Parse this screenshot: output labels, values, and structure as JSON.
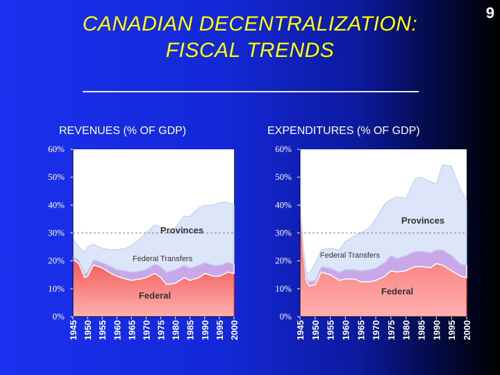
{
  "slide": {
    "title_line1": "CANADIAN DECENTRALIZATION:",
    "title_line2": "FISCAL TRENDS",
    "page_number": "9"
  },
  "colors": {
    "title": "#ffff00",
    "federal": "#f05a55",
    "federal_light": "#ffb0b0",
    "transfers": "#c8a8e8",
    "provinces": "#dce6f8",
    "band_edge": "#b8cdf0"
  },
  "chart_data": [
    {
      "type": "area",
      "title": "REVENUES (% OF GDP)",
      "stacked": true,
      "ylim": [
        0,
        60
      ],
      "yticks": [
        "0%",
        "10%",
        "20%",
        "30%",
        "40%",
        "50%",
        "60%"
      ],
      "xticks": [
        "1945",
        "1950",
        "1955",
        "1960",
        "1965",
        "1970",
        "1975",
        "1980",
        "1985",
        "1990",
        "1995",
        "2000"
      ],
      "x": [
        1945,
        1947,
        1949,
        1950,
        1952,
        1955,
        1958,
        1960,
        1963,
        1965,
        1968,
        1970,
        1973,
        1975,
        1977,
        1980,
        1983,
        1985,
        1988,
        1990,
        1993,
        1995,
        1998,
        2000
      ],
      "series": [
        {
          "name": "Federal",
          "label": "Federal",
          "values": [
            20.5,
            19.0,
            14.0,
            14.5,
            18.5,
            17.5,
            15.5,
            14.5,
            13.5,
            13.0,
            13.5,
            14.0,
            15.5,
            14.0,
            11.5,
            12.0,
            14.0,
            13.0,
            14.0,
            15.5,
            14.5,
            14.5,
            16.0,
            15.5
          ]
        },
        {
          "name": "Federal Transfers",
          "label": "Federal Transfers",
          "values": [
            1.0,
            1.5,
            1.5,
            1.5,
            2.0,
            2.0,
            2.5,
            2.5,
            3.0,
            3.0,
            3.0,
            3.0,
            3.5,
            4.0,
            4.5,
            5.0,
            4.5,
            4.5,
            4.5,
            4.0,
            4.0,
            4.0,
            3.5,
            3.5
          ]
        },
        {
          "name": "Provinces",
          "label": "Provinces",
          "values": [
            6.5,
            4.5,
            7.5,
            9.0,
            5.5,
            5.0,
            6.0,
            7.0,
            8.0,
            9.5,
            11.5,
            13.0,
            14.0,
            14.0,
            14.0,
            15.0,
            17.5,
            18.5,
            20.5,
            20.5,
            21.5,
            22.5,
            21.5,
            21.0
          ]
        }
      ]
    },
    {
      "type": "area",
      "title": "EXPENDITURES (% OF GDP)",
      "stacked": true,
      "ylim": [
        0,
        60
      ],
      "yticks": [
        "0%",
        "10%",
        "20%",
        "30%",
        "40%",
        "50%",
        "60%"
      ],
      "xticks": [
        "1945",
        "1950",
        "1955",
        "1960",
        "1965",
        "1970",
        "1975",
        "1980",
        "1985",
        "1990",
        "1995",
        "2000"
      ],
      "x": [
        1945,
        1946,
        1947,
        1948,
        1950,
        1952,
        1955,
        1958,
        1960,
        1963,
        1965,
        1968,
        1970,
        1973,
        1975,
        1977,
        1980,
        1983,
        1985,
        1988,
        1990,
        1992,
        1995,
        1998,
        2000
      ],
      "series": [
        {
          "name": "Federal",
          "label": "Federal",
          "values": [
            40.0,
            24.0,
            13.0,
            11.0,
            11.5,
            16.0,
            15.0,
            13.0,
            13.5,
            13.5,
            12.5,
            12.5,
            13.0,
            14.5,
            16.5,
            16.0,
            16.5,
            18.0,
            18.0,
            17.5,
            19.0,
            18.5,
            16.5,
            14.5,
            14.0
          ]
        },
        {
          "name": "Federal Transfers",
          "label": "Federal Transfers",
          "values": [
            0.5,
            1.0,
            1.0,
            1.5,
            1.5,
            2.0,
            2.5,
            3.0,
            3.5,
            3.5,
            4.0,
            4.5,
            4.5,
            5.0,
            5.5,
            5.0,
            5.5,
            5.5,
            5.5,
            5.5,
            5.0,
            5.5,
            5.5,
            4.5,
            4.5
          ]
        },
        {
          "name": "Provinces",
          "label": "Provinces",
          "values": [
            0.5,
            1.0,
            2.0,
            3.0,
            6.0,
            6.0,
            7.0,
            8.0,
            10.0,
            12.0,
            13.5,
            15.0,
            17.5,
            21.0,
            20.0,
            22.0,
            20.5,
            26.0,
            26.5,
            25.5,
            23.5,
            30.5,
            32.0,
            26.5,
            23.0
          ]
        }
      ]
    }
  ]
}
